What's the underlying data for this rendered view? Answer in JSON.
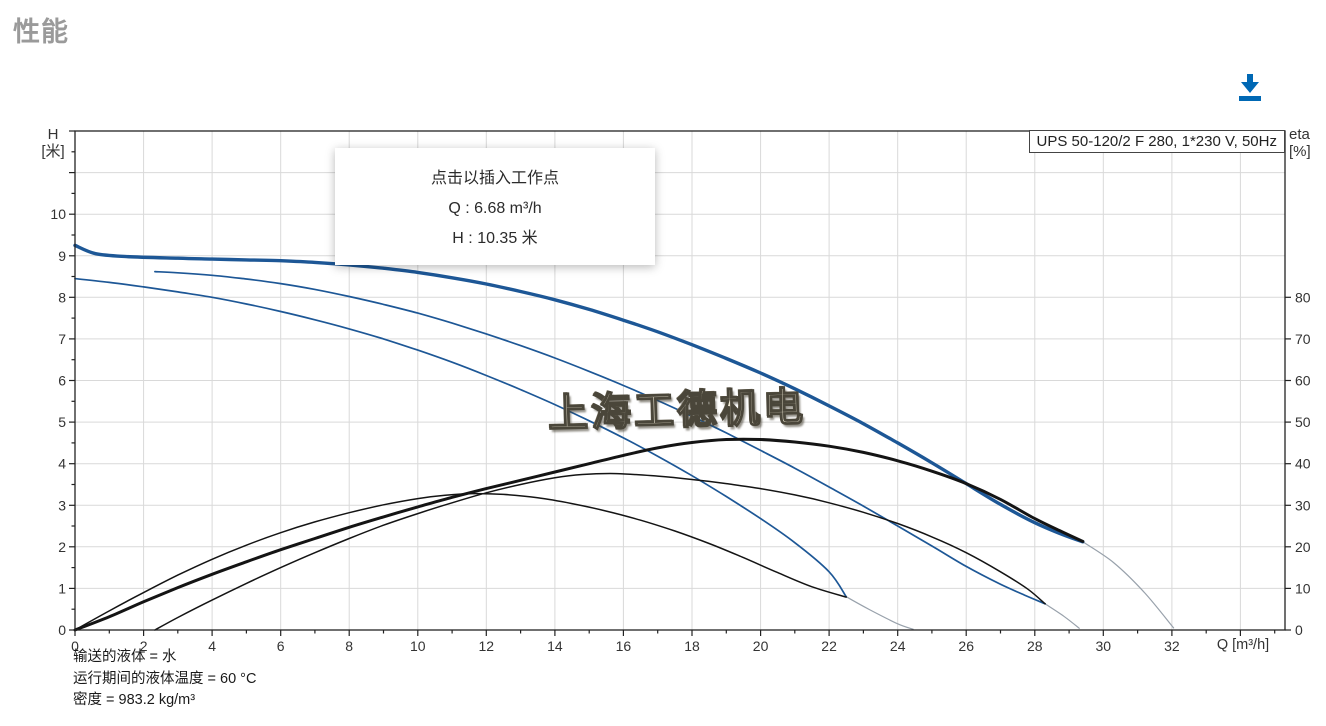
{
  "header": {
    "title": "性能"
  },
  "toolbar": {
    "download_icon": "download",
    "download_color": "#0068b4"
  },
  "tooltip": {
    "line1": "点击以插入工作点",
    "line2": "Q : 6.68 m³/h",
    "line3": "H : 10.35 米"
  },
  "watermark": "上海工德机电",
  "footer": {
    "line1": "输送的液体 = 水",
    "line2": "运行期间的液体温度 = 60 °C",
    "line3": "密度 = 983.2 kg/m³"
  },
  "chart_data": {
    "type": "line",
    "title": "UPS 50-120/2 F 280, 1*230 V, 50Hz",
    "grid": true,
    "colors": {
      "curve_blue": "#1d5796",
      "curve_black": "#141414",
      "extension_gray": "#98a1ab",
      "grid": "#d9d9d9",
      "axis": "#222222"
    },
    "x_axis": {
      "label": "Q [m³/h]",
      "min": 0,
      "max": 35.3,
      "major_tick_step": 2,
      "minor_tick_step": 1,
      "major_tick_max": 34,
      "tick_labels": [
        0,
        2,
        4,
        6,
        8,
        10,
        12,
        14,
        16,
        18,
        20,
        22,
        24,
        26,
        28,
        30,
        32
      ]
    },
    "y_axis_left": {
      "label_line1": "H",
      "label_line2": "[米]",
      "min": 0,
      "max": 12,
      "major_tick_step": 1,
      "minor_tick_step": 0.5,
      "tick_labels": [
        0,
        1,
        2,
        3,
        4,
        5,
        6,
        7,
        8,
        9,
        10
      ]
    },
    "y_axis_right": {
      "label_line1": "eta",
      "label_line2": "[%]",
      "min": 0,
      "max": 120,
      "major_tick_step": 10,
      "major_tick_max": 80,
      "tick_labels": [
        0,
        10,
        20,
        30,
        40,
        50,
        60,
        70,
        80
      ]
    },
    "series": [
      {
        "name": "speed1-head-extension",
        "axis": "left",
        "color": "#98a1ab",
        "width": 1.2,
        "points": [
          [
            22.5,
            0.8
          ],
          [
            23.2,
            0.48
          ],
          [
            24,
            0.15
          ],
          [
            24.45,
            0.02
          ]
        ]
      },
      {
        "name": "speed2-head-extension",
        "axis": "left",
        "color": "#98a1ab",
        "width": 1.2,
        "points": [
          [
            28.3,
            0.63
          ],
          [
            28.85,
            0.33
          ],
          [
            29.3,
            0.04
          ]
        ]
      },
      {
        "name": "speed3-head-extension",
        "axis": "left",
        "color": "#98a1ab",
        "width": 1.2,
        "points": [
          [
            29.4,
            2.12
          ],
          [
            30.3,
            1.62
          ],
          [
            31.2,
            0.9
          ],
          [
            32.05,
            0.05
          ]
        ]
      },
      {
        "name": "speed1-head",
        "axis": "left",
        "color": "#1d5796",
        "width": 1.7,
        "points": [
          [
            0,
            8.45
          ],
          [
            1,
            8.36
          ],
          [
            2,
            8.25
          ],
          [
            3,
            8.13
          ],
          [
            4,
            8.0
          ],
          [
            5,
            7.84
          ],
          [
            6,
            7.66
          ],
          [
            7,
            7.46
          ],
          [
            8,
            7.24
          ],
          [
            9,
            7.0
          ],
          [
            10,
            6.73
          ],
          [
            11,
            6.44
          ],
          [
            12,
            6.12
          ],
          [
            13,
            5.78
          ],
          [
            14,
            5.42
          ],
          [
            15,
            5.03
          ],
          [
            16,
            4.62
          ],
          [
            17,
            4.18
          ],
          [
            18,
            3.71
          ],
          [
            19,
            3.21
          ],
          [
            20,
            2.68
          ],
          [
            21,
            2.1
          ],
          [
            22,
            1.4
          ],
          [
            22.5,
            0.8
          ]
        ]
      },
      {
        "name": "speed2-head",
        "axis": "left",
        "color": "#1d5796",
        "width": 1.7,
        "points": [
          [
            2.33,
            8.62
          ],
          [
            3,
            8.59
          ],
          [
            4,
            8.53
          ],
          [
            5,
            8.44
          ],
          [
            6,
            8.33
          ],
          [
            7,
            8.19
          ],
          [
            8,
            8.02
          ],
          [
            9,
            7.83
          ],
          [
            10,
            7.62
          ],
          [
            11,
            7.38
          ],
          [
            12,
            7.12
          ],
          [
            13,
            6.84
          ],
          [
            14,
            6.54
          ],
          [
            15,
            6.22
          ],
          [
            16,
            5.88
          ],
          [
            17,
            5.52
          ],
          [
            18,
            5.14
          ],
          [
            19,
            4.74
          ],
          [
            20,
            4.32
          ],
          [
            21,
            3.89
          ],
          [
            22,
            3.44
          ],
          [
            23,
            2.98
          ],
          [
            24,
            2.5
          ],
          [
            25,
            2.02
          ],
          [
            26,
            1.53
          ],
          [
            27,
            1.1
          ],
          [
            27.7,
            0.84
          ],
          [
            28.3,
            0.63
          ]
        ]
      },
      {
        "name": "speed3-head",
        "axis": "left",
        "color": "#1d5796",
        "width": 3.4,
        "points": [
          [
            0,
            9.25
          ],
          [
            0.6,
            9.05
          ],
          [
            1.5,
            8.98
          ],
          [
            3,
            8.94
          ],
          [
            4,
            8.92
          ],
          [
            5,
            8.9
          ],
          [
            6,
            8.88
          ],
          [
            7,
            8.84
          ],
          [
            8,
            8.78
          ],
          [
            9,
            8.7
          ],
          [
            10,
            8.6
          ],
          [
            11,
            8.47
          ],
          [
            12,
            8.32
          ],
          [
            13,
            8.14
          ],
          [
            14,
            7.94
          ],
          [
            15,
            7.71
          ],
          [
            16,
            7.45
          ],
          [
            17,
            7.17
          ],
          [
            18,
            6.86
          ],
          [
            19,
            6.53
          ],
          [
            20,
            6.18
          ],
          [
            21,
            5.8
          ],
          [
            22,
            5.39
          ],
          [
            23,
            4.96
          ],
          [
            24,
            4.5
          ],
          [
            25,
            4.02
          ],
          [
            26,
            3.52
          ],
          [
            27,
            3.02
          ],
          [
            28,
            2.58
          ],
          [
            28.8,
            2.3
          ],
          [
            29.4,
            2.12
          ]
        ]
      },
      {
        "name": "speed1-eta",
        "axis": "right",
        "color": "#141414",
        "width": 1.5,
        "points": [
          [
            0,
            0
          ],
          [
            1,
            4.6
          ],
          [
            2,
            9
          ],
          [
            3,
            13.2
          ],
          [
            4,
            17
          ],
          [
            5,
            20.4
          ],
          [
            6,
            23.4
          ],
          [
            7,
            26
          ],
          [
            8,
            28.2
          ],
          [
            9,
            30.1
          ],
          [
            10,
            31.6
          ],
          [
            10.8,
            32.4
          ],
          [
            11.6,
            32.8
          ],
          [
            12.5,
            32.6
          ],
          [
            13.5,
            31.8
          ],
          [
            14.5,
            30.4
          ],
          [
            15.5,
            28.6
          ],
          [
            16.5,
            26.4
          ],
          [
            17.5,
            23.8
          ],
          [
            18.5,
            20.8
          ],
          [
            19.5,
            17.4
          ],
          [
            20.5,
            13.8
          ],
          [
            21.5,
            10.4
          ],
          [
            22.5,
            7.9
          ]
        ]
      },
      {
        "name": "speed2-eta",
        "axis": "right",
        "color": "#141414",
        "width": 1.5,
        "points": [
          [
            2.33,
            0
          ],
          [
            3,
            3
          ],
          [
            4,
            7.2
          ],
          [
            5,
            11.2
          ],
          [
            6,
            15
          ],
          [
            7,
            18.6
          ],
          [
            8,
            22
          ],
          [
            9,
            25.2
          ],
          [
            10,
            28
          ],
          [
            11,
            30.6
          ],
          [
            12,
            33
          ],
          [
            13,
            35
          ],
          [
            14,
            36.6
          ],
          [
            14.8,
            37.4
          ],
          [
            15.8,
            37.6
          ],
          [
            17,
            37
          ],
          [
            18,
            36.2
          ],
          [
            19,
            35.2
          ],
          [
            20,
            34
          ],
          [
            21,
            32.5
          ],
          [
            22,
            30.6
          ],
          [
            23,
            28.3
          ],
          [
            24,
            25.6
          ],
          [
            25,
            22.4
          ],
          [
            26,
            18.6
          ],
          [
            27,
            14
          ],
          [
            27.8,
            9.8
          ],
          [
            28.3,
            6.3
          ]
        ]
      },
      {
        "name": "speed3-eta",
        "axis": "right",
        "color": "#141414",
        "width": 3,
        "points": [
          [
            0,
            0
          ],
          [
            1,
            3.2
          ],
          [
            2,
            6.8
          ],
          [
            3,
            10.2
          ],
          [
            4,
            13.4
          ],
          [
            5,
            16.4
          ],
          [
            6,
            19.3
          ],
          [
            7,
            22
          ],
          [
            8,
            24.7
          ],
          [
            9,
            27.2
          ],
          [
            10,
            29.6
          ],
          [
            11,
            31.9
          ],
          [
            12,
            34
          ],
          [
            13,
            36
          ],
          [
            14,
            38
          ],
          [
            15,
            40
          ],
          [
            16,
            42
          ],
          [
            17,
            43.8
          ],
          [
            18,
            45.1
          ],
          [
            19,
            45.8
          ],
          [
            20,
            45.8
          ],
          [
            21,
            45.2
          ],
          [
            22,
            44.2
          ],
          [
            23,
            42.7
          ],
          [
            24,
            40.7
          ],
          [
            25,
            38.2
          ],
          [
            26,
            35.2
          ],
          [
            27,
            31.4
          ],
          [
            28,
            26.8
          ],
          [
            28.8,
            23.6
          ],
          [
            29.4,
            21.3
          ]
        ]
      }
    ]
  }
}
